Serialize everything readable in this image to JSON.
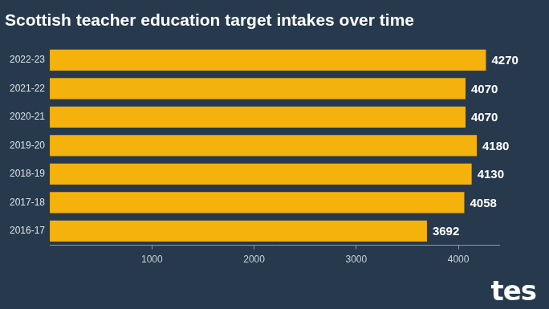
{
  "chart_data": {
    "type": "bar",
    "orientation": "horizontal",
    "title": "Scottish teacher education target intakes over time",
    "categories": [
      "2022-23",
      "2021-22",
      "2020-21",
      "2019-20",
      "2018-19",
      "2017-18",
      "2016-17"
    ],
    "values": [
      4270,
      4070,
      4070,
      4180,
      4130,
      4058,
      3692
    ],
    "color": "#f5b10c",
    "xlim": [
      0,
      4400
    ],
    "xticks": [
      1000,
      2000,
      3000,
      4000
    ],
    "grid": false,
    "data_labels": true,
    "annotations": [
      "tes"
    ]
  }
}
